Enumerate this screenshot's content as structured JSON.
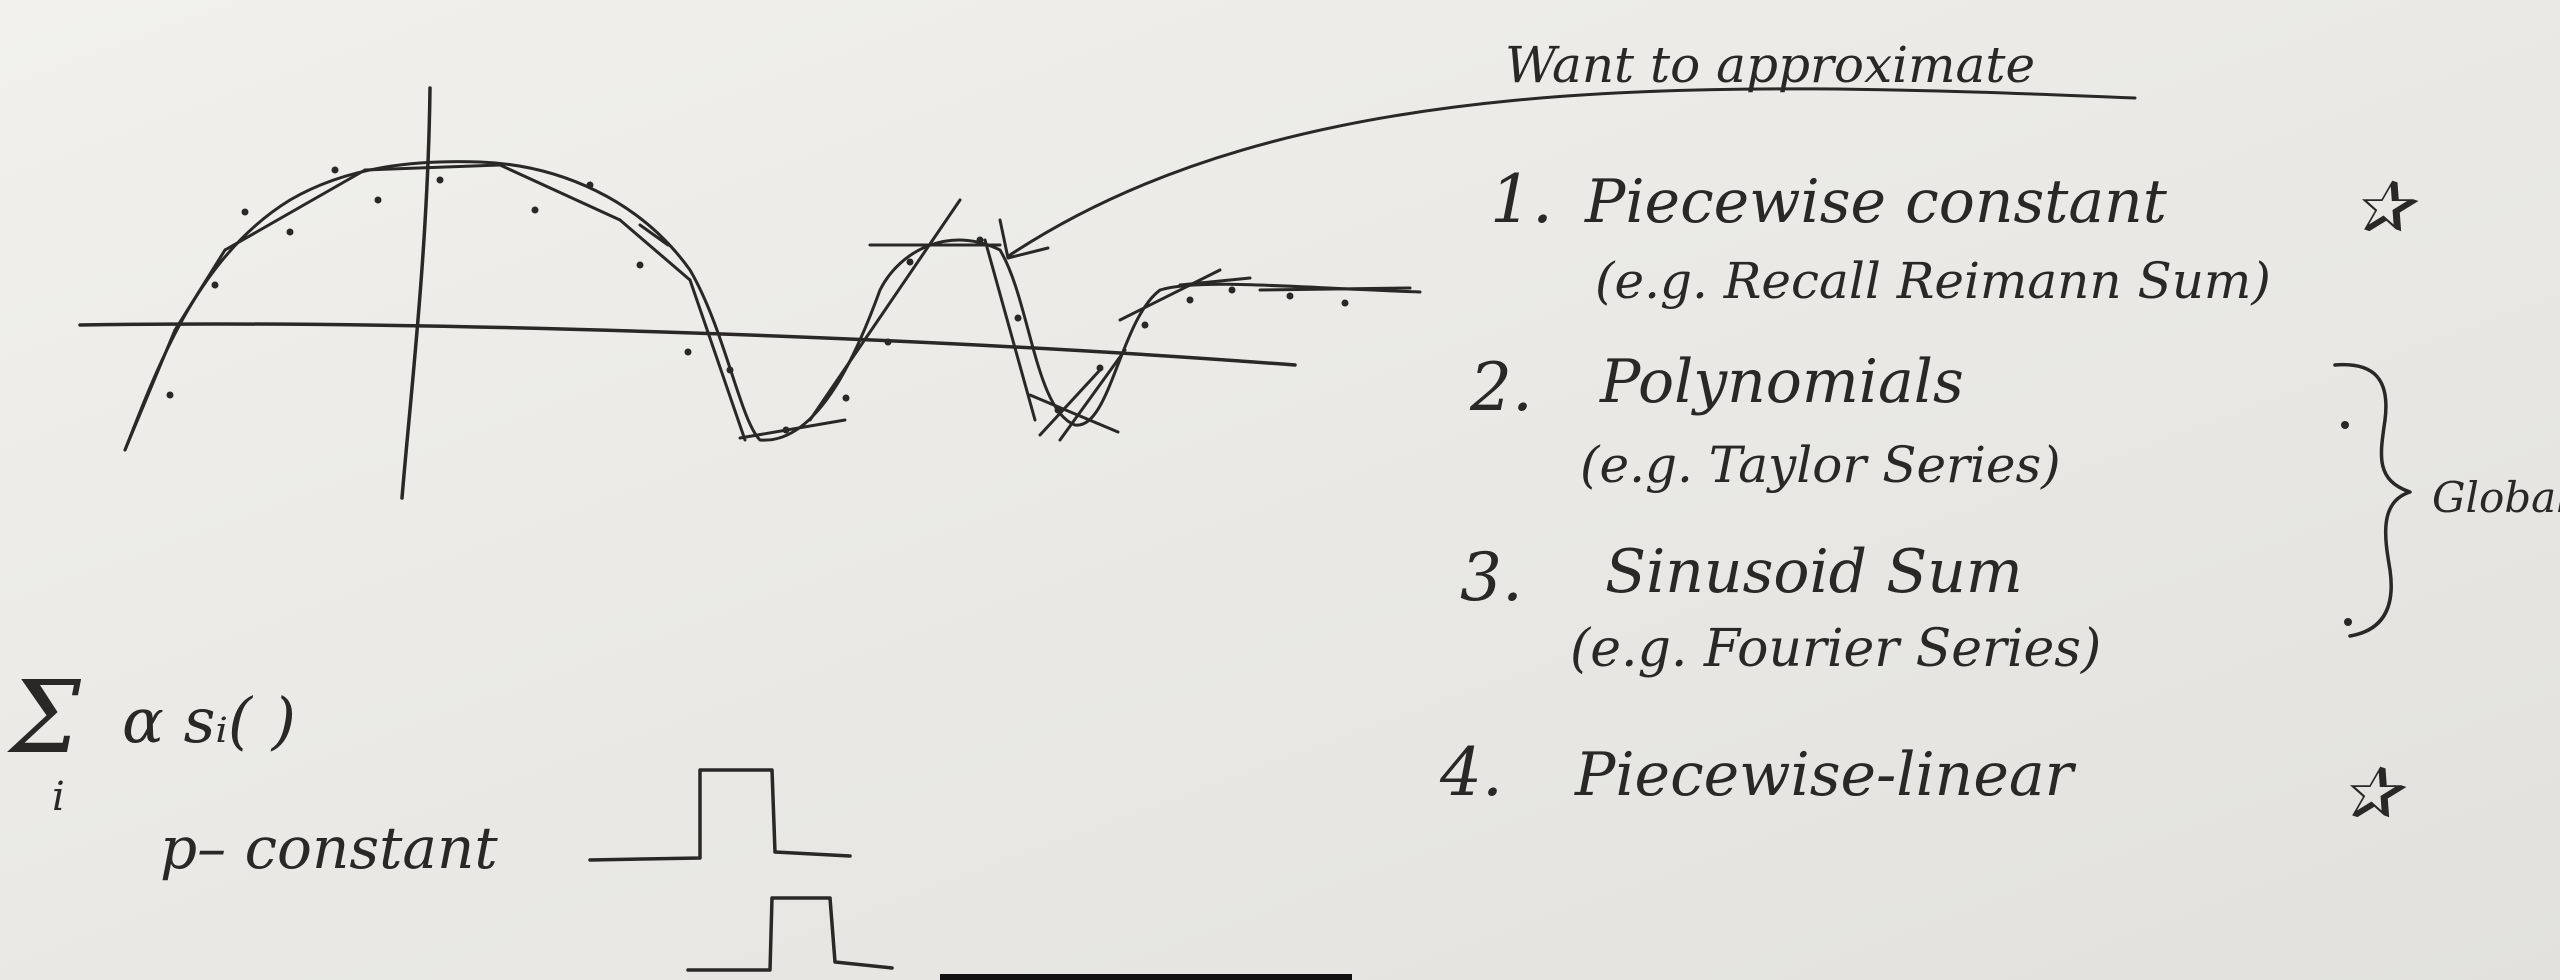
{
  "heading": "Want to approximate",
  "methods": [
    {
      "number": "1.",
      "name": "Piecewise constant",
      "example": "(e.g. Recall Reimann Sum)"
    },
    {
      "number": "2.",
      "name": "Polynomials",
      "example": "(e.g. Taylor Series)"
    },
    {
      "number": "3.",
      "name": "Sinusoid Sum",
      "example": "(e.g. Fourier Series)"
    },
    {
      "number": "4.",
      "name": "Piecewise-linear",
      "example": ""
    }
  ],
  "global_label": "Global",
  "sum_expression": {
    "sigma": "Σ",
    "index": "i",
    "body": "α sᵢ( )"
  },
  "p_constant_label": "p– constant",
  "star_marks": [
    "✰",
    "✰"
  ],
  "colors": {
    "ink": "#2a2826",
    "board": "#ecebe7"
  }
}
